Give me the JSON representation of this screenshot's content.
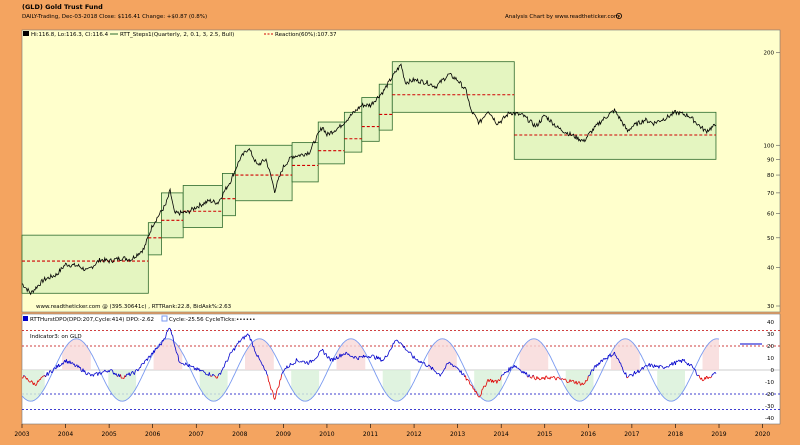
{
  "header": {
    "title": "(GLD) Gold Trust Fund",
    "subline": "DAILY-Trading, Dec-03-2018   Close: $116.41   Change: +$0.87   (0.8%)",
    "site": "Analysis Chart by www.readtheticker.com"
  },
  "colors": {
    "frame": "#F4A460",
    "panel": "#FFFFCC",
    "box_fill": "#E4F5C0",
    "box_stroke": "#2E6B2E",
    "price": "#000000",
    "reaction": "#D00000",
    "hurst": "#0000CC",
    "hurst_neg": "#E00000",
    "cycle": "#7A9AF0",
    "band_red": "#C00000",
    "band_blue": "#0000C0"
  },
  "chart_data": [
    {
      "type": "line",
      "name": "price-panel",
      "legend": {
        "ohlc": "Hi:116.8, Lo:116.3, Cl:116.4",
        "steps": "RTT_Steps1(Quarterly, 2, 0.1, 3, 2.5, Bull)",
        "reaction": "Reaction(60%):107.37"
      },
      "watermark": "www.readtheticker.com @ (395.30641c) , RTTRank:22.8, BidAsk%:2.63",
      "y_scale": "log",
      "ylim": [
        30,
        220
      ],
      "y_ticks": [
        30,
        40,
        50,
        60,
        70,
        80,
        90,
        100,
        200
      ],
      "x_domain": [
        2003.0,
        2020.4
      ],
      "x_ticks": [
        "2003",
        "2004",
        "2005",
        "2006",
        "2007",
        "2008",
        "2009",
        "2010",
        "2011",
        "2012",
        "2013",
        "2014",
        "2015",
        "2016",
        "2017",
        "2018",
        "2019",
        "2020"
      ],
      "price": [
        [
          2003.0,
          35.5
        ],
        [
          2003.2,
          33.0
        ],
        [
          2003.5,
          36.5
        ],
        [
          2003.8,
          38.0
        ],
        [
          2004.0,
          41.0
        ],
        [
          2004.3,
          40.5
        ],
        [
          2004.5,
          39.0
        ],
        [
          2004.8,
          42.5
        ],
        [
          2005.0,
          42.0
        ],
        [
          2005.3,
          43.0
        ],
        [
          2005.5,
          42.5
        ],
        [
          2005.8,
          46.0
        ],
        [
          2006.0,
          55.0
        ],
        [
          2006.3,
          64.0
        ],
        [
          2006.4,
          71.0
        ],
        [
          2006.5,
          60.0
        ],
        [
          2006.8,
          60.5
        ],
        [
          2007.0,
          63.0
        ],
        [
          2007.3,
          66.0
        ],
        [
          2007.5,
          65.0
        ],
        [
          2007.8,
          77.0
        ],
        [
          2008.0,
          90.0
        ],
        [
          2008.2,
          98.0
        ],
        [
          2008.4,
          86.0
        ],
        [
          2008.6,
          90.0
        ],
        [
          2008.8,
          71.0
        ],
        [
          2009.0,
          85.0
        ],
        [
          2009.2,
          92.0
        ],
        [
          2009.4,
          93.0
        ],
        [
          2009.6,
          95.0
        ],
        [
          2009.9,
          115.0
        ],
        [
          2010.0,
          108.0
        ],
        [
          2010.3,
          115.0
        ],
        [
          2010.5,
          123.0
        ],
        [
          2010.8,
          135.0
        ],
        [
          2011.0,
          135.0
        ],
        [
          2011.3,
          150.0
        ],
        [
          2011.6,
          175.0
        ],
        [
          2011.7,
          183.0
        ],
        [
          2011.8,
          160.0
        ],
        [
          2012.0,
          163.0
        ],
        [
          2012.3,
          160.0
        ],
        [
          2012.5,
          155.0
        ],
        [
          2012.8,
          170.0
        ],
        [
          2013.0,
          163.0
        ],
        [
          2013.2,
          150.0
        ],
        [
          2013.3,
          130.0
        ],
        [
          2013.5,
          118.0
        ],
        [
          2013.7,
          130.0
        ],
        [
          2013.9,
          118.0
        ],
        [
          2014.0,
          120.0
        ],
        [
          2014.2,
          128.0
        ],
        [
          2014.5,
          125.0
        ],
        [
          2014.8,
          115.0
        ],
        [
          2015.0,
          125.0
        ],
        [
          2015.3,
          114.0
        ],
        [
          2015.5,
          110.0
        ],
        [
          2015.9,
          103.0
        ],
        [
          2016.0,
          108.0
        ],
        [
          2016.3,
          120.0
        ],
        [
          2016.6,
          130.0
        ],
        [
          2016.9,
          111.0
        ],
        [
          2017.0,
          115.0
        ],
        [
          2017.3,
          121.0
        ],
        [
          2017.5,
          118.0
        ],
        [
          2017.8,
          123.0
        ],
        [
          2018.0,
          128.0
        ],
        [
          2018.3,
          125.0
        ],
        [
          2018.6,
          114.0
        ],
        [
          2018.7,
          111.0
        ],
        [
          2018.93,
          116.4
        ]
      ],
      "step_boxes": [
        {
          "x0": 2003.0,
          "x1": 2005.9,
          "top": 51,
          "bottom": 33,
          "mid": 42
        },
        {
          "x0": 2005.9,
          "x1": 2006.2,
          "top": 56,
          "bottom": 44,
          "mid": 50
        },
        {
          "x0": 2006.2,
          "x1": 2006.7,
          "top": 70,
          "bottom": 50,
          "mid": 57
        },
        {
          "x0": 2006.7,
          "x1": 2007.6,
          "top": 74,
          "bottom": 54,
          "mid": 61
        },
        {
          "x0": 2007.6,
          "x1": 2007.9,
          "top": 81,
          "bottom": 59,
          "mid": 67
        },
        {
          "x0": 2007.9,
          "x1": 2009.2,
          "top": 100,
          "bottom": 66,
          "mid": 80
        },
        {
          "x0": 2009.2,
          "x1": 2009.8,
          "top": 102,
          "bottom": 76,
          "mid": 86
        },
        {
          "x0": 2009.8,
          "x1": 2010.4,
          "top": 119,
          "bottom": 87,
          "mid": 96
        },
        {
          "x0": 2010.4,
          "x1": 2010.8,
          "top": 128,
          "bottom": 95,
          "mid": 105
        },
        {
          "x0": 2010.8,
          "x1": 2011.2,
          "top": 143,
          "bottom": 103,
          "mid": 115
        },
        {
          "x0": 2011.2,
          "x1": 2011.5,
          "top": 158,
          "bottom": 112,
          "mid": 126
        },
        {
          "x0": 2011.5,
          "x1": 2014.3,
          "top": 187,
          "bottom": 128,
          "mid": 146
        },
        {
          "x0": 2014.3,
          "x1": 2018.93,
          "top": 128,
          "bottom": 90,
          "mid": 108
        }
      ]
    },
    {
      "type": "line",
      "name": "hurst-panel",
      "legend": {
        "dpo": "RTTHurstDPO(DPO:207,Cycle:414) DPO:-2.62",
        "cycle": "Cycle:-25.56 CycleTicks:••••••"
      },
      "indicator_label": "Indicator3: on GLD",
      "ylim": [
        -40,
        40
      ],
      "y_ticks": [
        40,
        30,
        20,
        10,
        0,
        -10,
        -20,
        -30,
        -40
      ],
      "bands": [
        33,
        20,
        -20,
        -33
      ],
      "dpo": [
        [
          2003.0,
          -5
        ],
        [
          2003.3,
          -12
        ],
        [
          2003.6,
          -3
        ],
        [
          2004.0,
          8
        ],
        [
          2004.3,
          2
        ],
        [
          2004.6,
          -5
        ],
        [
          2005.0,
          0
        ],
        [
          2005.3,
          -6
        ],
        [
          2005.6,
          -2
        ],
        [
          2005.9,
          10
        ],
        [
          2006.2,
          22
        ],
        [
          2006.4,
          36
        ],
        [
          2006.6,
          8
        ],
        [
          2006.9,
          2
        ],
        [
          2007.2,
          -2
        ],
        [
          2007.5,
          -6
        ],
        [
          2007.8,
          14
        ],
        [
          2008.0,
          24
        ],
        [
          2008.2,
          30
        ],
        [
          2008.4,
          12
        ],
        [
          2008.6,
          -2
        ],
        [
          2008.8,
          -24
        ],
        [
          2009.0,
          0
        ],
        [
          2009.3,
          8
        ],
        [
          2009.6,
          6
        ],
        [
          2009.9,
          16
        ],
        [
          2010.1,
          8
        ],
        [
          2010.4,
          14
        ],
        [
          2010.7,
          10
        ],
        [
          2011.0,
          12
        ],
        [
          2011.3,
          8
        ],
        [
          2011.6,
          26
        ],
        [
          2011.8,
          18
        ],
        [
          2012.0,
          10
        ],
        [
          2012.3,
          4
        ],
        [
          2012.6,
          -4
        ],
        [
          2012.8,
          6
        ],
        [
          2013.0,
          2
        ],
        [
          2013.3,
          -12
        ],
        [
          2013.5,
          -22
        ],
        [
          2013.7,
          -8
        ],
        [
          2013.9,
          -10
        ],
        [
          2014.1,
          -2
        ],
        [
          2014.3,
          4
        ],
        [
          2014.6,
          -4
        ],
        [
          2014.9,
          -8
        ],
        [
          2015.1,
          -6
        ],
        [
          2015.4,
          -8
        ],
        [
          2015.7,
          -10
        ],
        [
          2015.9,
          -12
        ],
        [
          2016.1,
          0
        ],
        [
          2016.3,
          8
        ],
        [
          2016.6,
          14
        ],
        [
          2016.9,
          -6
        ],
        [
          2017.1,
          -2
        ],
        [
          2017.4,
          4
        ],
        [
          2017.7,
          2
        ],
        [
          2018.0,
          6
        ],
        [
          2018.2,
          8
        ],
        [
          2018.4,
          2
        ],
        [
          2018.6,
          -8
        ],
        [
          2018.75,
          -6
        ],
        [
          2018.93,
          -3
        ]
      ],
      "cycle_wave": {
        "amplitude": 26,
        "period_years": 2.1,
        "phase_peak_year": 2006.35
      }
    }
  ]
}
